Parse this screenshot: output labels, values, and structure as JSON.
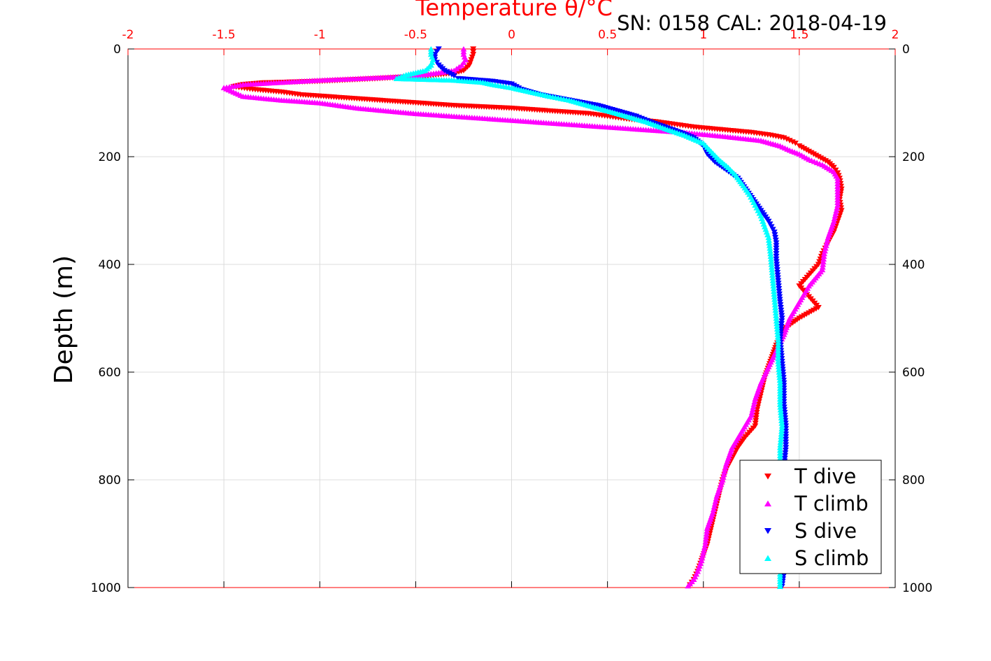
{
  "chart_data": {
    "type": "scatter",
    "title": "Temperature θ/°C",
    "subtitle": "SN: 0158  CAL: 2018-04-19",
    "ylabel": "Depth (m)",
    "xlabel": "",
    "xlim": [
      -2,
      2
    ],
    "ylim": [
      0,
      1000
    ],
    "y_reversed": true,
    "grid": true,
    "x_ticks": [
      "-2",
      "-1.5",
      "-1",
      "-0.5",
      "0",
      "0.5",
      "1",
      "1.5",
      "2"
    ],
    "y_ticks": [
      "0",
      "200",
      "400",
      "600",
      "800",
      "1000"
    ],
    "legend_position": "bottom-right",
    "series": [
      {
        "name": "T dive",
        "color": "#ff0000",
        "marker": "triangle-down",
        "points": [
          [
            -0.2,
            0
          ],
          [
            -0.2,
            10
          ],
          [
            -0.21,
            20
          ],
          [
            -0.22,
            30
          ],
          [
            -0.25,
            40
          ],
          [
            -0.3,
            45
          ],
          [
            -0.45,
            50
          ],
          [
            -0.7,
            55
          ],
          [
            -1.0,
            60
          ],
          [
            -1.3,
            63
          ],
          [
            -1.4,
            66
          ],
          [
            -1.45,
            70
          ],
          [
            -1.35,
            75
          ],
          [
            -1.2,
            80
          ],
          [
            -1.1,
            85
          ],
          [
            -0.9,
            90
          ],
          [
            -0.7,
            95
          ],
          [
            -0.5,
            100
          ],
          [
            -0.3,
            105
          ],
          [
            0.0,
            110
          ],
          [
            0.2,
            115
          ],
          [
            0.4,
            120
          ],
          [
            0.5,
            125
          ],
          [
            0.6,
            130
          ],
          [
            0.75,
            135
          ],
          [
            0.85,
            140
          ],
          [
            0.95,
            145
          ],
          [
            1.1,
            150
          ],
          [
            1.25,
            155
          ],
          [
            1.35,
            160
          ],
          [
            1.42,
            165
          ],
          [
            1.45,
            170
          ],
          [
            1.48,
            175
          ],
          [
            1.5,
            180
          ],
          [
            1.55,
            190
          ],
          [
            1.6,
            200
          ],
          [
            1.65,
            210
          ],
          [
            1.68,
            220
          ],
          [
            1.7,
            230
          ],
          [
            1.71,
            240
          ],
          [
            1.72,
            260
          ],
          [
            1.71,
            280
          ],
          [
            1.72,
            300
          ],
          [
            1.7,
            320
          ],
          [
            1.68,
            340
          ],
          [
            1.65,
            360
          ],
          [
            1.62,
            380
          ],
          [
            1.6,
            400
          ],
          [
            1.55,
            420
          ],
          [
            1.5,
            440
          ],
          [
            1.55,
            460
          ],
          [
            1.6,
            480
          ],
          [
            1.55,
            490
          ],
          [
            1.5,
            500
          ],
          [
            1.42,
            520
          ],
          [
            1.38,
            550
          ],
          [
            1.35,
            580
          ],
          [
            1.32,
            610
          ],
          [
            1.3,
            640
          ],
          [
            1.28,
            670
          ],
          [
            1.27,
            700
          ],
          [
            1.22,
            720
          ],
          [
            1.18,
            740
          ],
          [
            1.15,
            760
          ],
          [
            1.12,
            780
          ],
          [
            1.1,
            800
          ],
          [
            1.08,
            830
          ],
          [
            1.06,
            860
          ],
          [
            1.04,
            890
          ],
          [
            1.02,
            920
          ],
          [
            0.99,
            950
          ],
          [
            0.97,
            970
          ],
          [
            0.95,
            985
          ],
          [
            0.93,
            995
          ]
        ]
      },
      {
        "name": "T climb",
        "color": "#ff00ff",
        "marker": "triangle-up",
        "points": [
          [
            -0.25,
            0
          ],
          [
            -0.25,
            10
          ],
          [
            -0.24,
            20
          ],
          [
            -0.26,
            30
          ],
          [
            -0.3,
            40
          ],
          [
            -0.5,
            50
          ],
          [
            -0.8,
            55
          ],
          [
            -1.0,
            58
          ],
          [
            -1.2,
            62
          ],
          [
            -1.4,
            66
          ],
          [
            -1.5,
            72
          ],
          [
            -1.45,
            80
          ],
          [
            -1.4,
            88
          ],
          [
            -1.2,
            95
          ],
          [
            -1.0,
            100
          ],
          [
            -0.8,
            110
          ],
          [
            -0.5,
            120
          ],
          [
            -0.3,
            125
          ],
          [
            -0.1,
            130
          ],
          [
            0.1,
            135
          ],
          [
            0.3,
            140
          ],
          [
            0.5,
            145
          ],
          [
            0.7,
            150
          ],
          [
            0.9,
            155
          ],
          [
            1.1,
            162
          ],
          [
            1.3,
            170
          ],
          [
            1.4,
            180
          ],
          [
            1.45,
            188
          ],
          [
            1.5,
            195
          ],
          [
            1.55,
            205
          ],
          [
            1.62,
            215
          ],
          [
            1.68,
            228
          ],
          [
            1.7,
            240
          ],
          [
            1.7,
            260
          ],
          [
            1.7,
            290
          ],
          [
            1.68,
            320
          ],
          [
            1.65,
            350
          ],
          [
            1.63,
            380
          ],
          [
            1.62,
            410
          ],
          [
            1.55,
            440
          ],
          [
            1.5,
            470
          ],
          [
            1.45,
            500
          ],
          [
            1.42,
            530
          ],
          [
            1.38,
            560
          ],
          [
            1.34,
            590
          ],
          [
            1.3,
            620
          ],
          [
            1.27,
            650
          ],
          [
            1.25,
            680
          ],
          [
            1.2,
            710
          ],
          [
            1.15,
            740
          ],
          [
            1.12,
            770
          ],
          [
            1.1,
            800
          ],
          [
            1.07,
            830
          ],
          [
            1.05,
            860
          ],
          [
            1.02,
            890
          ],
          [
            1.01,
            920
          ],
          [
            0.99,
            950
          ],
          [
            0.97,
            970
          ],
          [
            0.95,
            985
          ],
          [
            0.92,
            997
          ]
        ]
      },
      {
        "name": "S dive",
        "color": "#0000ff",
        "marker": "triangle-down",
        "points": [
          [
            -0.38,
            0
          ],
          [
            -0.4,
            10
          ],
          [
            -0.4,
            20
          ],
          [
            -0.38,
            30
          ],
          [
            -0.35,
            40
          ],
          [
            -0.3,
            50
          ],
          [
            -0.28,
            55
          ],
          [
            -0.1,
            60
          ],
          [
            0.0,
            65
          ],
          [
            0.05,
            75
          ],
          [
            0.15,
            85
          ],
          [
            0.3,
            95
          ],
          [
            0.45,
            105
          ],
          [
            0.55,
            115
          ],
          [
            0.65,
            125
          ],
          [
            0.72,
            135
          ],
          [
            0.8,
            145
          ],
          [
            0.88,
            155
          ],
          [
            0.95,
            165
          ],
          [
            1.0,
            180
          ],
          [
            1.02,
            195
          ],
          [
            1.06,
            210
          ],
          [
            1.12,
            225
          ],
          [
            1.18,
            240
          ],
          [
            1.22,
            260
          ],
          [
            1.26,
            280
          ],
          [
            1.3,
            300
          ],
          [
            1.34,
            320
          ],
          [
            1.37,
            340
          ],
          [
            1.38,
            360
          ],
          [
            1.38,
            390
          ],
          [
            1.39,
            430
          ],
          [
            1.4,
            470
          ],
          [
            1.41,
            500
          ],
          [
            1.4,
            540
          ],
          [
            1.41,
            580
          ],
          [
            1.42,
            620
          ],
          [
            1.42,
            660
          ],
          [
            1.43,
            700
          ],
          [
            1.43,
            740
          ],
          [
            1.42,
            780
          ],
          [
            1.41,
            830
          ],
          [
            1.41,
            880
          ],
          [
            1.41,
            930
          ],
          [
            1.42,
            970
          ],
          [
            1.41,
            998
          ]
        ]
      },
      {
        "name": "S climb",
        "color": "#00ffff",
        "marker": "triangle-up",
        "points": [
          [
            -0.42,
            0
          ],
          [
            -0.42,
            10
          ],
          [
            -0.41,
            20
          ],
          [
            -0.42,
            30
          ],
          [
            -0.45,
            40
          ],
          [
            -0.55,
            48
          ],
          [
            -0.6,
            55
          ],
          [
            -0.3,
            58
          ],
          [
            -0.15,
            62
          ],
          [
            -0.1,
            66
          ],
          [
            0.0,
            72
          ],
          [
            0.1,
            80
          ],
          [
            0.2,
            88
          ],
          [
            0.3,
            95
          ],
          [
            0.4,
            105
          ],
          [
            0.5,
            115
          ],
          [
            0.6,
            125
          ],
          [
            0.7,
            135
          ],
          [
            0.8,
            148
          ],
          [
            0.9,
            160
          ],
          [
            1.0,
            175
          ],
          [
            1.04,
            190
          ],
          [
            1.08,
            205
          ],
          [
            1.13,
            220
          ],
          [
            1.17,
            235
          ],
          [
            1.2,
            250
          ],
          [
            1.24,
            270
          ],
          [
            1.27,
            290
          ],
          [
            1.3,
            310
          ],
          [
            1.32,
            330
          ],
          [
            1.34,
            350
          ],
          [
            1.35,
            380
          ],
          [
            1.36,
            420
          ],
          [
            1.37,
            460
          ],
          [
            1.38,
            500
          ],
          [
            1.39,
            540
          ],
          [
            1.39,
            580
          ],
          [
            1.4,
            620
          ],
          [
            1.4,
            660
          ],
          [
            1.41,
            700
          ],
          [
            1.4,
            740
          ],
          [
            1.4,
            780
          ],
          [
            1.39,
            830
          ],
          [
            1.4,
            880
          ],
          [
            1.4,
            930
          ],
          [
            1.4,
            970
          ],
          [
            1.4,
            998
          ]
        ]
      }
    ]
  }
}
